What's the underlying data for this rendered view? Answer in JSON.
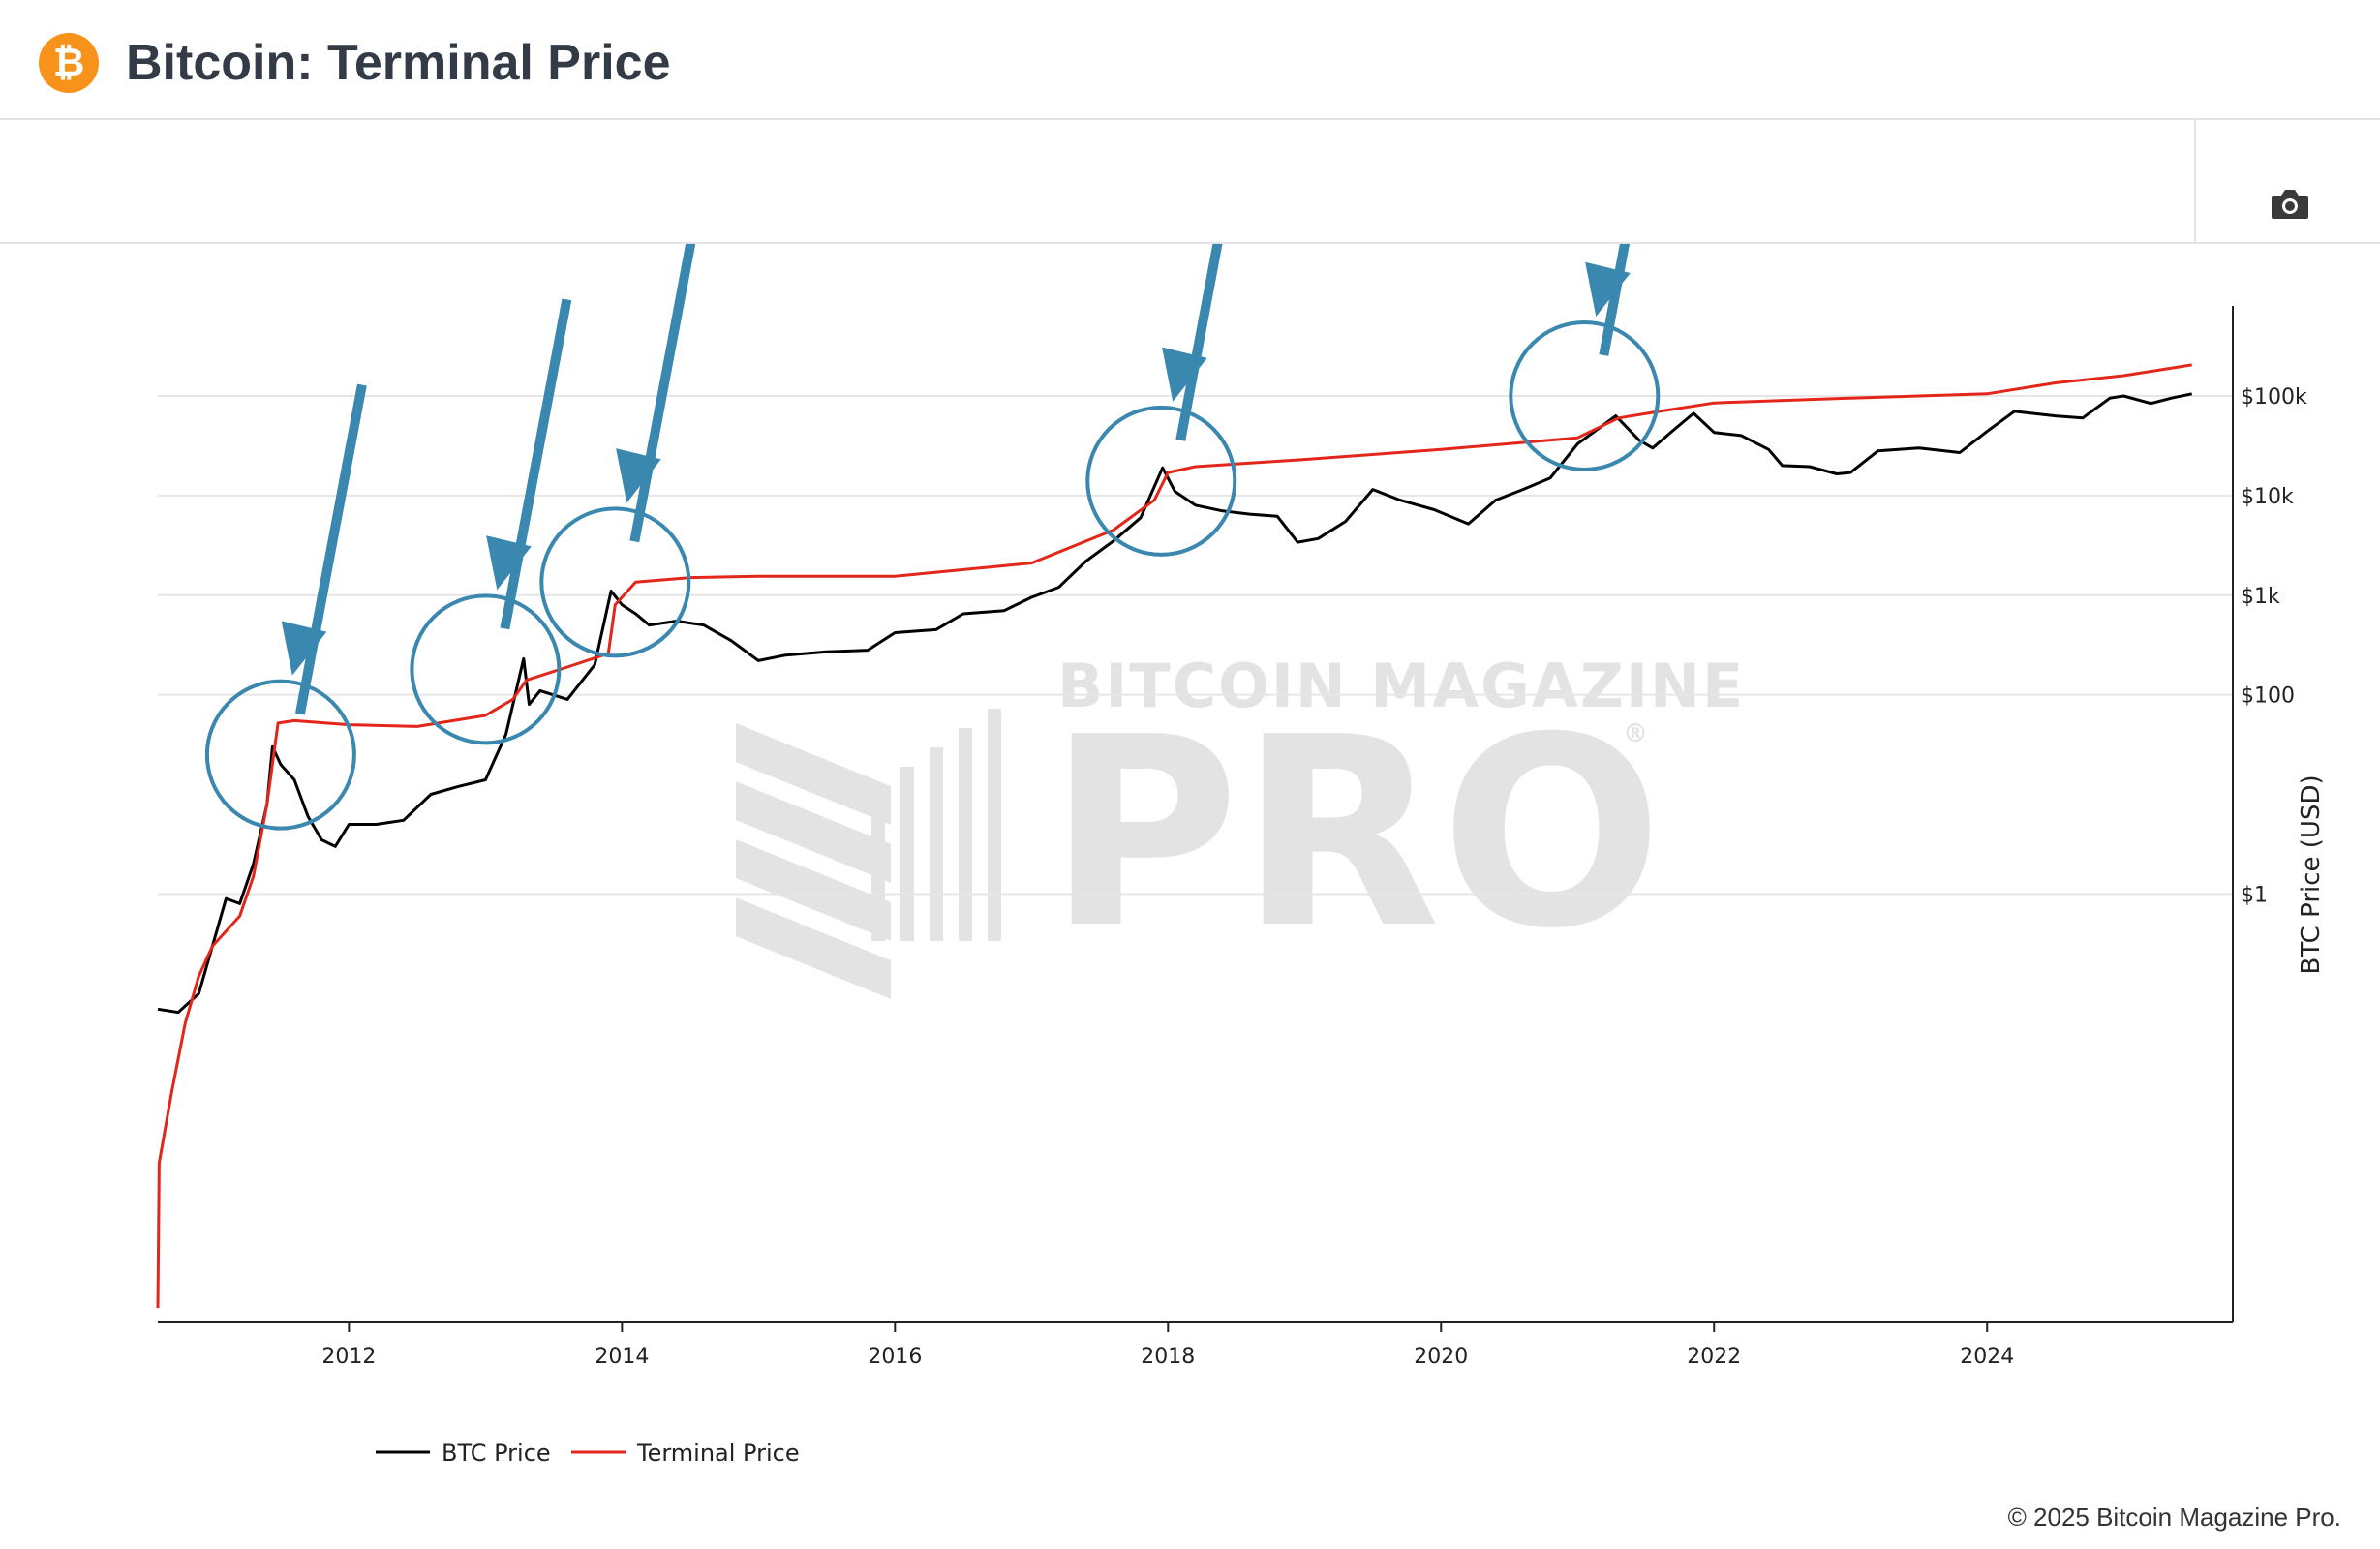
{
  "header": {
    "title": "Bitcoin: Terminal Price",
    "logo_icon": "bitcoin-logo-icon",
    "logo_glyph": "₿"
  },
  "toolbar": {
    "camera_icon": "camera-icon"
  },
  "footer": {
    "copyright": "© 2025 Bitcoin Magazine Pro."
  },
  "watermark": {
    "line1": "BITCOIN MAGAZINE",
    "line2": "PRO",
    "registered": "®"
  },
  "chart_data": {
    "type": "line",
    "title": "",
    "xlabel": "",
    "ylabel": "BTC Price (USD)",
    "y_scale": "log",
    "xlim": [
      2010.6,
      2025.8
    ],
    "ylim": [
      5e-05,
      700000
    ],
    "x_ticks": [
      2012,
      2014,
      2016,
      2018,
      2020,
      2022,
      2024
    ],
    "x_tick_labels": [
      "2012",
      "2014",
      "2016",
      "2018",
      "2020",
      "2022",
      "2024"
    ],
    "y_ticks": [
      1,
      100,
      1000,
      10000,
      100000
    ],
    "y_tick_labels": [
      "$1",
      "$100",
      "$1k",
      "$10k",
      "$100k"
    ],
    "grid": true,
    "legend_position": "bottom-left",
    "colors": {
      "btc": "#000000",
      "terminal": "#e3261a",
      "annotation": "#3a87b0"
    },
    "series": [
      {
        "name": "BTC Price",
        "color": "#000000",
        "points": [
          [
            2010.6,
            0.07
          ],
          [
            2010.75,
            0.065
          ],
          [
            2010.9,
            0.1
          ],
          [
            2011.0,
            0.3
          ],
          [
            2011.1,
            0.9
          ],
          [
            2011.2,
            0.8
          ],
          [
            2011.3,
            2.0
          ],
          [
            2011.4,
            8
          ],
          [
            2011.44,
            30
          ],
          [
            2011.5,
            20
          ],
          [
            2011.6,
            14
          ],
          [
            2011.7,
            6
          ],
          [
            2011.8,
            3.5
          ],
          [
            2011.9,
            3
          ],
          [
            2012.0,
            5
          ],
          [
            2012.2,
            5
          ],
          [
            2012.4,
            5.5
          ],
          [
            2012.6,
            10
          ],
          [
            2012.8,
            12
          ],
          [
            2013.0,
            14
          ],
          [
            2013.15,
            40
          ],
          [
            2013.28,
            230
          ],
          [
            2013.32,
            80
          ],
          [
            2013.4,
            110
          ],
          [
            2013.6,
            90
          ],
          [
            2013.8,
            200
          ],
          [
            2013.92,
            1100
          ],
          [
            2014.0,
            800
          ],
          [
            2014.1,
            650
          ],
          [
            2014.2,
            500
          ],
          [
            2014.4,
            550
          ],
          [
            2014.6,
            500
          ],
          [
            2014.8,
            350
          ],
          [
            2015.0,
            220
          ],
          [
            2015.2,
            250
          ],
          [
            2015.5,
            270
          ],
          [
            2015.8,
            280
          ],
          [
            2016.0,
            420
          ],
          [
            2016.3,
            450
          ],
          [
            2016.5,
            650
          ],
          [
            2016.8,
            700
          ],
          [
            2017.0,
            950
          ],
          [
            2017.2,
            1200
          ],
          [
            2017.4,
            2200
          ],
          [
            2017.6,
            3500
          ],
          [
            2017.8,
            6000
          ],
          [
            2017.96,
            19000
          ],
          [
            2018.05,
            11000
          ],
          [
            2018.2,
            8000
          ],
          [
            2018.4,
            7000
          ],
          [
            2018.6,
            6500
          ],
          [
            2018.8,
            6200
          ],
          [
            2018.95,
            3400
          ],
          [
            2019.1,
            3700
          ],
          [
            2019.3,
            5500
          ],
          [
            2019.5,
            11500
          ],
          [
            2019.7,
            9000
          ],
          [
            2019.95,
            7200
          ],
          [
            2020.2,
            5200
          ],
          [
            2020.4,
            9000
          ],
          [
            2020.6,
            11500
          ],
          [
            2020.8,
            15000
          ],
          [
            2021.0,
            33000
          ],
          [
            2021.28,
            63000
          ],
          [
            2021.45,
            36000
          ],
          [
            2021.55,
            30000
          ],
          [
            2021.7,
            45000
          ],
          [
            2021.85,
            67000
          ],
          [
            2022.0,
            43000
          ],
          [
            2022.2,
            40000
          ],
          [
            2022.4,
            29000
          ],
          [
            2022.5,
            20000
          ],
          [
            2022.7,
            19500
          ],
          [
            2022.9,
            16500
          ],
          [
            2023.0,
            17000
          ],
          [
            2023.2,
            28000
          ],
          [
            2023.5,
            30000
          ],
          [
            2023.8,
            27000
          ],
          [
            2024.0,
            44000
          ],
          [
            2024.2,
            70000
          ],
          [
            2024.5,
            63000
          ],
          [
            2024.7,
            60000
          ],
          [
            2024.9,
            95000
          ],
          [
            2025.0,
            100000
          ],
          [
            2025.2,
            84000
          ],
          [
            2025.35,
            95000
          ],
          [
            2025.5,
            105000
          ]
        ]
      },
      {
        "name": "Terminal Price",
        "color": "#e3261a",
        "points": [
          [
            2010.6,
            7e-05
          ],
          [
            2010.61,
            0.002
          ],
          [
            2010.7,
            0.01
          ],
          [
            2010.8,
            0.05
          ],
          [
            2010.9,
            0.15
          ],
          [
            2011.0,
            0.3
          ],
          [
            2011.2,
            0.6
          ],
          [
            2011.3,
            1.5
          ],
          [
            2011.4,
            8
          ],
          [
            2011.48,
            52
          ],
          [
            2011.6,
            55
          ],
          [
            2012.0,
            50
          ],
          [
            2012.5,
            48
          ],
          [
            2013.0,
            62
          ],
          [
            2013.2,
            90
          ],
          [
            2013.3,
            140
          ],
          [
            2013.6,
            190
          ],
          [
            2013.9,
            260
          ],
          [
            2013.95,
            800
          ],
          [
            2014.1,
            1350
          ],
          [
            2014.5,
            1500
          ],
          [
            2015.0,
            1550
          ],
          [
            2016.0,
            1550
          ],
          [
            2017.0,
            2100
          ],
          [
            2017.6,
            4500
          ],
          [
            2017.9,
            9000
          ],
          [
            2018.0,
            17000
          ],
          [
            2018.2,
            19500
          ],
          [
            2019.0,
            23000
          ],
          [
            2020.0,
            29000
          ],
          [
            2021.0,
            38000
          ],
          [
            2021.3,
            60000
          ],
          [
            2021.6,
            70000
          ],
          [
            2022.0,
            85000
          ],
          [
            2023.0,
            95000
          ],
          [
            2024.0,
            105000
          ],
          [
            2024.5,
            135000
          ],
          [
            2025.0,
            160000
          ],
          [
            2025.5,
            205000
          ]
        ]
      }
    ],
    "annotations": {
      "circles": [
        {
          "x": 2011.5,
          "y": 25
        },
        {
          "x": 2013.0,
          "y": 180
        },
        {
          "x": 2013.95,
          "y": 1350
        },
        {
          "x": 2017.95,
          "y": 14000
        },
        {
          "x": 2021.05,
          "y": 100000
        }
      ]
    }
  }
}
